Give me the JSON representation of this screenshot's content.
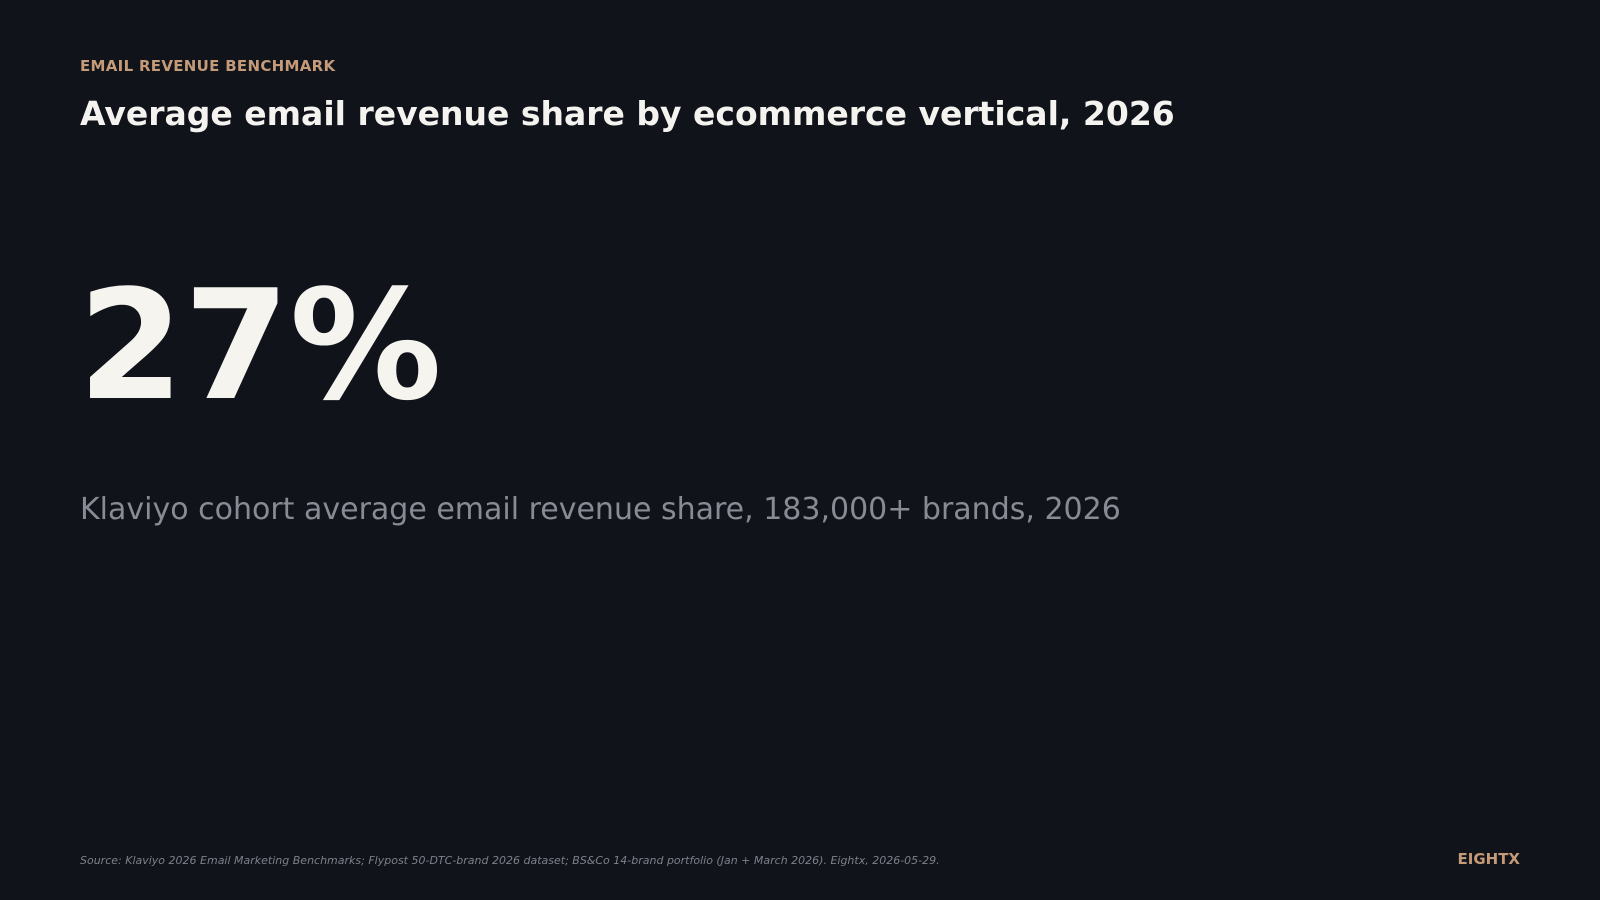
{
  "header": {
    "eyebrow": "EMAIL REVENUE BENCHMARK",
    "title": "Average email revenue share by ecommerce vertical, 2026"
  },
  "stat": {
    "value": "27%",
    "caption": "Klaviyo cohort average email revenue share, 183,000+ brands, 2026"
  },
  "footer": {
    "source": "Source: Klaviyo 2026 Email Marketing Benchmarks; Flypost 50-DTC-brand 2026 dataset; BS&Co 14-brand portfolio (Jan + March 2026). Eightx, 2026-05-29.",
    "brand": "EIGHTX"
  }
}
